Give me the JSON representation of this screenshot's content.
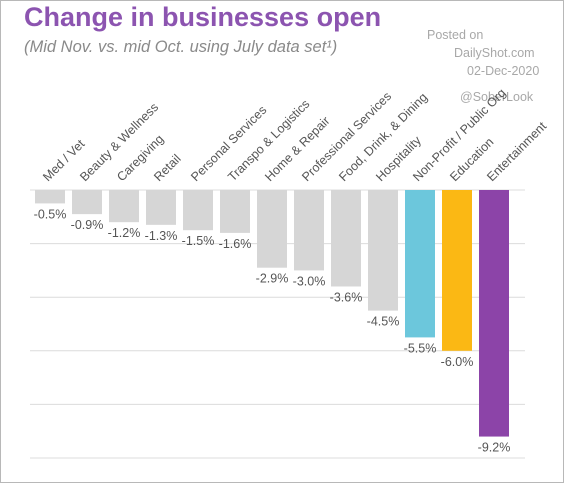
{
  "title": "Change in businesses open",
  "subtitle": "(Mid Nov. vs. mid Oct. using July data set¹)",
  "watermark": {
    "line1": "Posted on",
    "line2": "DailyShot.com",
    "line3": "02-Dec-2020",
    "line4": "@SoberLook"
  },
  "colors": {
    "default_bar": "#d6d6d6",
    "highlight_1": "#6cc7dc",
    "highlight_2": "#fbb814",
    "highlight_3": "#8c44a8",
    "title": "#8c54b0",
    "label": "#555555",
    "grid": "#dcdcdc"
  },
  "chart_data": {
    "type": "bar",
    "categories": [
      "Med / Vet",
      "Beauty & Wellness",
      "Caregiving",
      "Retail",
      "Personal Services",
      "Transpo & Logistics",
      "Home & Repair",
      "Professional Services",
      "Food, Drink, & Dining",
      "Hospitality",
      "Non-Profit / Public Org",
      "Education",
      "Entertainment"
    ],
    "values": [
      -0.5,
      -0.9,
      -1.2,
      -1.3,
      -1.5,
      -1.6,
      -2.9,
      -3.0,
      -3.6,
      -4.5,
      -5.5,
      -6.0,
      -9.2
    ],
    "value_labels": [
      "-0.5%",
      "-0.9%",
      "-1.2%",
      "-1.3%",
      "-1.5%",
      "-1.6%",
      "-2.9%",
      "-3.0%",
      "-3.6%",
      "-4.5%",
      "-5.5%",
      "-6.0%",
      "-9.2%"
    ],
    "bar_colors": [
      "default_bar",
      "default_bar",
      "default_bar",
      "default_bar",
      "default_bar",
      "default_bar",
      "default_bar",
      "default_bar",
      "default_bar",
      "default_bar",
      "highlight_1",
      "highlight_2",
      "highlight_3"
    ],
    "ylim": [
      -10,
      0
    ],
    "grid": true,
    "legend": "none"
  }
}
